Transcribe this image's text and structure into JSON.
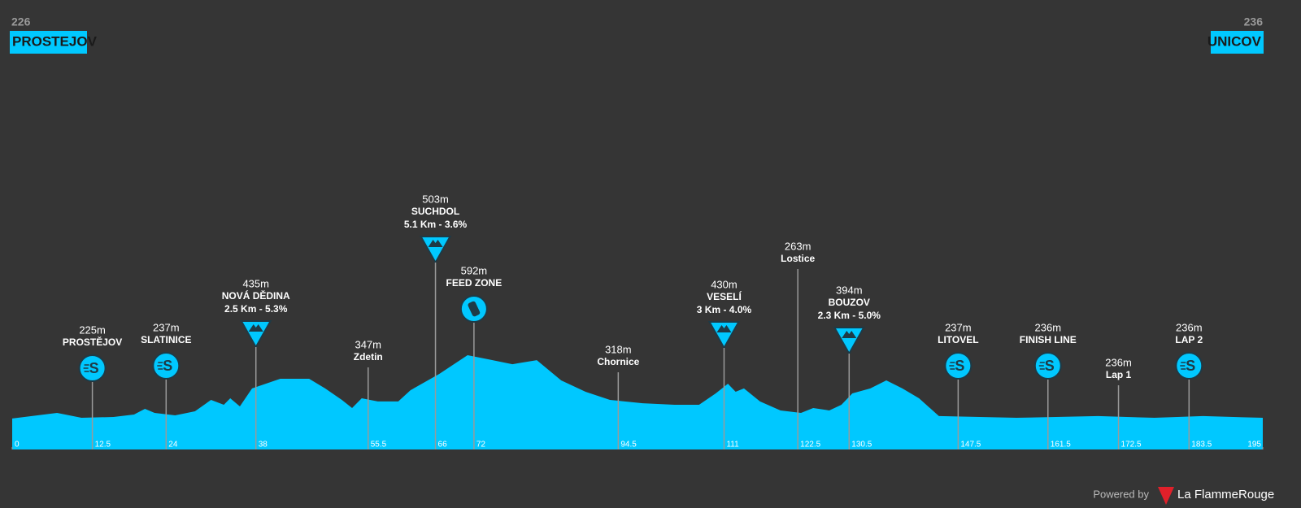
{
  "header": {
    "start_code": "226",
    "start_name": "PROSTEJOV",
    "finish_code": "236",
    "finish_name": "UNICOV"
  },
  "chart_data": {
    "type": "profile",
    "color": "#00c8ff",
    "x": [
      0,
      7,
      10.8,
      15.8,
      19,
      20.7,
      22.2,
      25.4,
      28.5,
      31,
      33,
      34,
      35.5,
      37.4,
      41.8,
      46.3,
      48.8,
      51.4,
      53,
      54.5,
      57,
      60.2,
      62.1,
      66.6,
      71,
      74.2,
      78,
      81.8,
      85.6,
      89.4,
      93.2,
      98.3,
      103.3,
      107.1,
      109.7,
      111.6,
      112.8,
      114.1,
      116.6,
      119.8,
      123,
      124.9,
      127.4,
      129.3,
      131,
      133.8,
      136.3,
      138.8,
      141.4,
      144.5,
      156.6,
      169.3,
      178.1,
      185.7,
      195
    ],
    "values": [
      226,
      258,
      230,
      235,
      249,
      281,
      258,
      244,
      267,
      332,
      304,
      341,
      295,
      397,
      452,
      452,
      397,
      332,
      286,
      341,
      323,
      323,
      387,
      480,
      586,
      563,
      535,
      558,
      443,
      378,
      332,
      313,
      304,
      304,
      369,
      424,
      378,
      397,
      323,
      272,
      258,
      286,
      272,
      304,
      369,
      397,
      443,
      397,
      341,
      240,
      230,
      240,
      230,
      240,
      230
    ],
    "xlim": [
      0,
      195
    ],
    "ylim": [
      50,
      600
    ],
    "xticks": [
      0,
      12.5,
      24,
      38,
      55.5,
      66,
      72,
      94.5,
      111,
      122.5,
      130.5,
      147.5,
      161.5,
      172.5,
      183.5,
      195
    ],
    "markers": [
      {
        "km": 12.5,
        "elevation": "225m",
        "name": "PROSTĚJOV",
        "icon": "sprint"
      },
      {
        "km": 24,
        "elevation": "237m",
        "name": "SLATINICE",
        "icon": "sprint"
      },
      {
        "km": 38,
        "elevation": "435m",
        "name": "NOVÁ DĚDINA",
        "detail": "2.5 Km - 5.3%",
        "icon": "climb"
      },
      {
        "km": 55.5,
        "elevation": "347m",
        "name": "Zdetin"
      },
      {
        "km": 66,
        "elevation": "503m",
        "name": "SUCHDOL",
        "detail": "5.1 Km - 3.6%",
        "icon": "climb"
      },
      {
        "km": 72,
        "elevation": "592m",
        "name": "FEED ZONE",
        "icon": "feed"
      },
      {
        "km": 94.5,
        "elevation": "318m",
        "name": "Chornice"
      },
      {
        "km": 111,
        "elevation": "430m",
        "name": "VESELÍ",
        "detail": "3 Km - 4.0%",
        "icon": "climb"
      },
      {
        "km": 122.5,
        "elevation": "263m",
        "name": "Lostice"
      },
      {
        "km": 130.5,
        "elevation": "394m",
        "name": "BOUZOV",
        "detail": "2.3 Km - 5.0%",
        "icon": "climb"
      },
      {
        "km": 147.5,
        "elevation": "237m",
        "name": "LITOVEL",
        "icon": "sprint"
      },
      {
        "km": 161.5,
        "elevation": "236m",
        "name": "FINISH LINE",
        "icon": "sprint"
      },
      {
        "km": 172.5,
        "elevation": "236m",
        "name": "Lap 1"
      },
      {
        "km": 183.5,
        "elevation": "236m",
        "name": "LAP 2",
        "icon": "sprint"
      }
    ]
  },
  "footer": {
    "powered": "Powered by",
    "brand": "La FlammeRouge"
  }
}
